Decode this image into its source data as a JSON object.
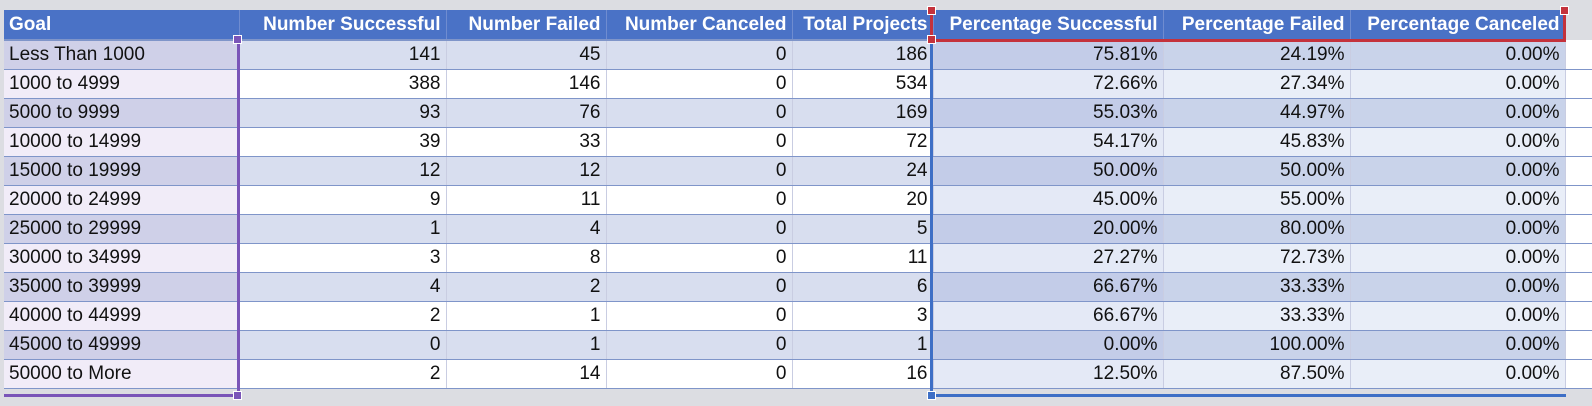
{
  "table": {
    "headers": [
      "Goal",
      "Number Successful",
      "Number Failed",
      "Number Canceled",
      "Total Projects",
      "Percentage Successful",
      "Percentage Failed",
      "Percentage Canceled"
    ],
    "rows": [
      [
        "Less Than 1000",
        "141",
        "45",
        "0",
        "186",
        "75.81%",
        "24.19%",
        "0.00%"
      ],
      [
        "1000 to 4999",
        "388",
        "146",
        "0",
        "534",
        "72.66%",
        "27.34%",
        "0.00%"
      ],
      [
        "5000 to 9999",
        "93",
        "76",
        "0",
        "169",
        "55.03%",
        "44.97%",
        "0.00%"
      ],
      [
        "10000 to 14999",
        "39",
        "33",
        "0",
        "72",
        "54.17%",
        "45.83%",
        "0.00%"
      ],
      [
        "15000 to 19999",
        "12",
        "12",
        "0",
        "24",
        "50.00%",
        "50.00%",
        "0.00%"
      ],
      [
        "20000 to 24999",
        "9",
        "11",
        "0",
        "20",
        "45.00%",
        "55.00%",
        "0.00%"
      ],
      [
        "25000 to 29999",
        "1",
        "4",
        "0",
        "5",
        "20.00%",
        "80.00%",
        "0.00%"
      ],
      [
        "30000 to 34999",
        "3",
        "8",
        "0",
        "11",
        "27.27%",
        "72.73%",
        "0.00%"
      ],
      [
        "35000 to 39999",
        "4",
        "2",
        "0",
        "6",
        "66.67%",
        "33.33%",
        "0.00%"
      ],
      [
        "40000 to 44999",
        "2",
        "1",
        "0",
        "3",
        "66.67%",
        "33.33%",
        "0.00%"
      ],
      [
        "45000 to 49999",
        "0",
        "1",
        "0",
        "1",
        "0.00%",
        "100.00%",
        "0.00%"
      ],
      [
        "50000 to More",
        "2",
        "14",
        "0",
        "16",
        "12.50%",
        "87.50%",
        "0.00%"
      ]
    ]
  },
  "colors": {
    "header_bg": "#4a72c6",
    "selection_goal": "#7a55b8",
    "selection_data": "#3e6fc6",
    "selection_header": "#c4323c"
  }
}
